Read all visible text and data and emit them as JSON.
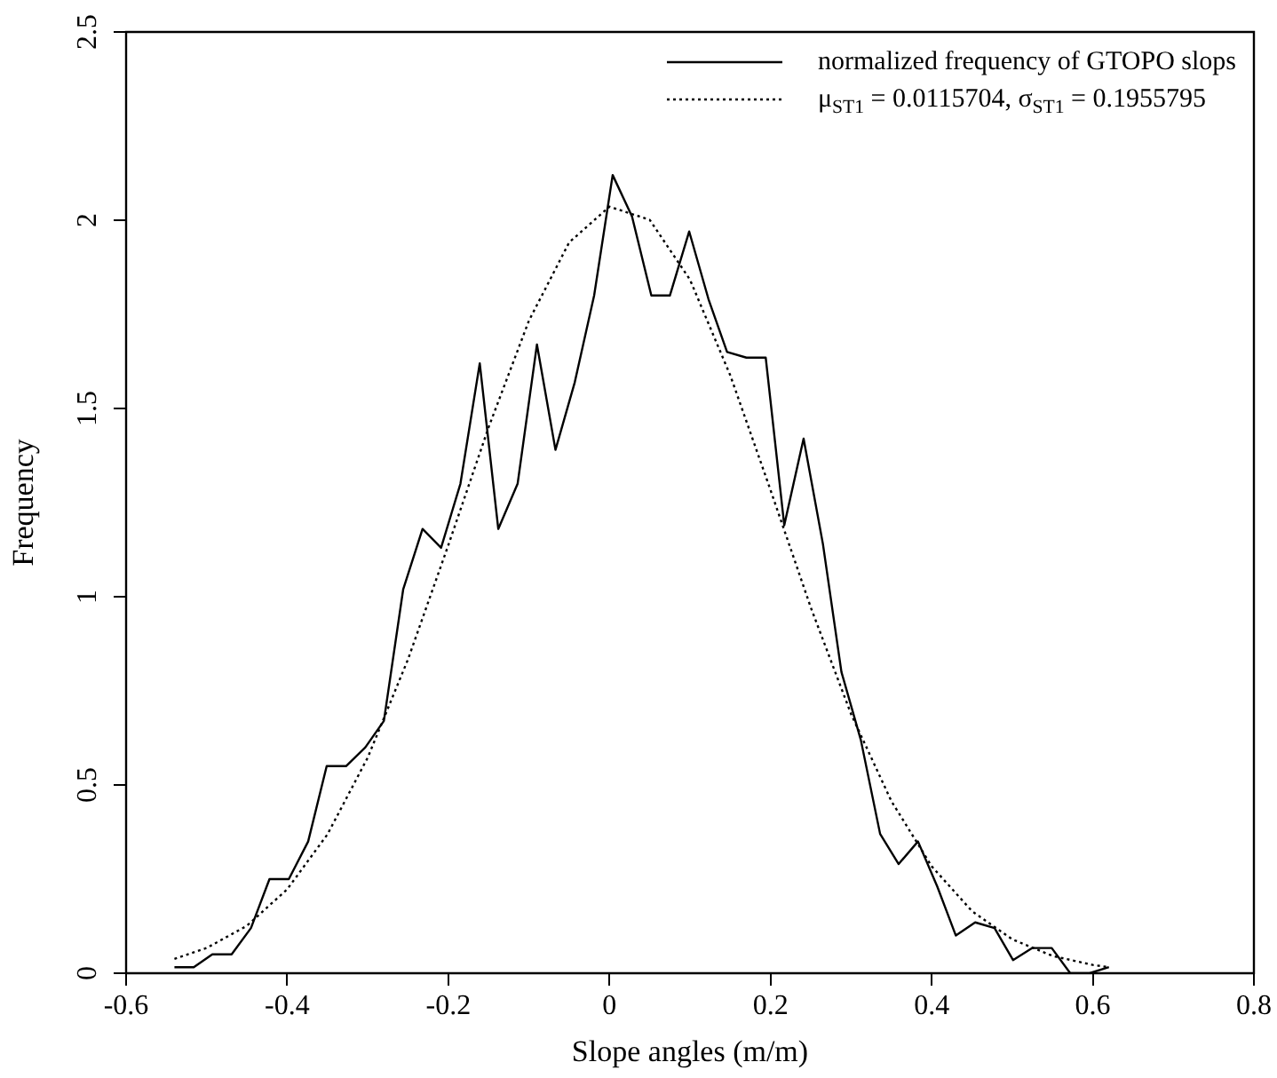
{
  "chart_data": {
    "type": "line",
    "xlabel": "Slope angles (m/m)",
    "ylabel": "Frequency",
    "xlim": [
      -0.6,
      0.8
    ],
    "xticks": [
      -0.6,
      -0.4,
      -0.2,
      0,
      0.2,
      0.4,
      0.6,
      0.8
    ],
    "ylim": [
      0,
      2.5
    ],
    "yticks": [
      0,
      0.5,
      1,
      1.5,
      2,
      2.5
    ],
    "grid": false,
    "legend": "top right",
    "marker": "none",
    "series": [
      {
        "name": "normalized frequency of GTOPO slops",
        "color": "#000000",
        "line_style": "solid",
        "x": [
          -0.54,
          -0.516,
          -0.493,
          -0.469,
          -0.445,
          -0.422,
          -0.398,
          -0.374,
          -0.351,
          -0.327,
          -0.303,
          -0.28,
          -0.256,
          -0.232,
          -0.209,
          -0.185,
          -0.161,
          -0.138,
          -0.114,
          -0.09,
          -0.067,
          -0.043,
          -0.019,
          0.004,
          0.028,
          0.052,
          0.075,
          0.099,
          0.123,
          0.146,
          0.17,
          0.194,
          0.217,
          0.241,
          0.265,
          0.288,
          0.312,
          0.336,
          0.359,
          0.383,
          0.407,
          0.43,
          0.454,
          0.478,
          0.501,
          0.525,
          0.549,
          0.572,
          0.596,
          0.62
        ],
        "values": [
          0.016,
          0.016,
          0.05,
          0.05,
          0.12,
          0.25,
          0.25,
          0.35,
          0.55,
          0.55,
          0.6,
          0.67,
          1.02,
          1.18,
          1.13,
          1.3,
          1.62,
          1.18,
          1.3,
          1.67,
          1.39,
          1.57,
          1.8,
          2.12,
          2.01,
          1.8,
          1.8,
          1.97,
          1.79,
          1.65,
          1.635,
          1.635,
          1.19,
          1.42,
          1.14,
          0.8,
          0.62,
          0.37,
          0.29,
          0.35,
          0.23,
          0.1,
          0.135,
          0.12,
          0.035,
          0.067,
          0.067,
          0,
          0,
          0.016
        ]
      },
      {
        "name": "μ$_{ST1}$ = 0.0115704, σ$_{ST1}$ = 0.1955795",
        "color": "#000000",
        "line_style": "dotted",
        "x": [
          -0.54,
          -0.5,
          -0.45,
          -0.4,
          -0.35,
          -0.3,
          -0.25,
          -0.2,
          -0.15,
          -0.1,
          -0.05,
          0,
          0.05,
          0.1,
          0.15,
          0.2,
          0.25,
          0.3,
          0.35,
          0.4,
          0.45,
          0.5,
          0.55,
          0.6,
          0.62
        ],
        "values": [
          0.038,
          0.067,
          0.126,
          0.223,
          0.369,
          0.573,
          0.834,
          1.137,
          1.45,
          1.733,
          1.941,
          2.036,
          2.001,
          1.842,
          1.588,
          1.283,
          0.971,
          0.688,
          0.457,
          0.284,
          0.165,
          0.09,
          0.046,
          0.022,
          0.016
        ]
      }
    ]
  }
}
